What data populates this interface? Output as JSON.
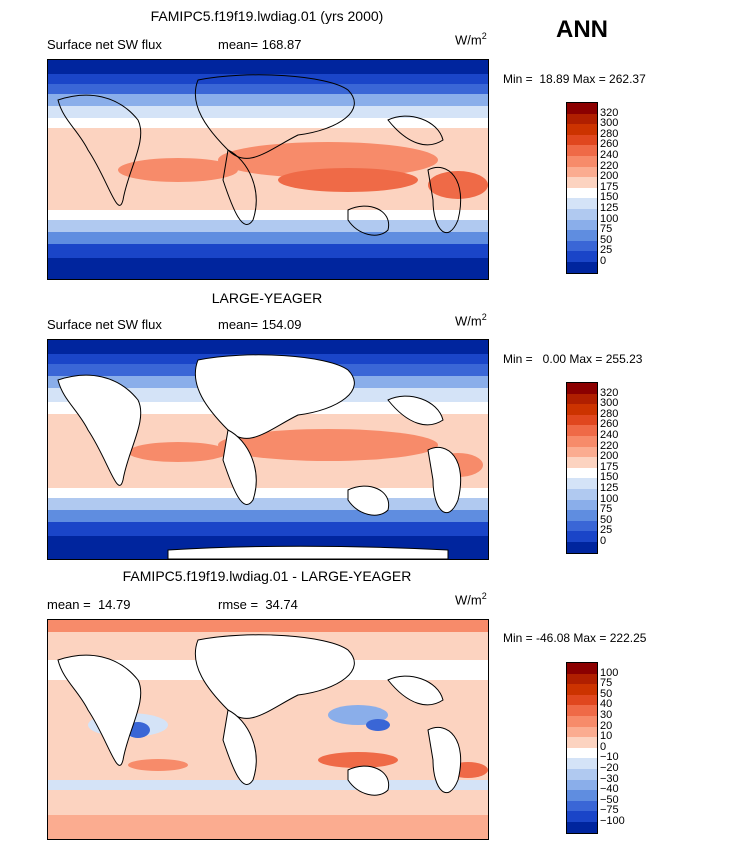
{
  "season": "ANN",
  "units": "W/m",
  "units_sup": "2",
  "panels": [
    {
      "title": "FAMIPC5.f19f19.lwdiag.01 (yrs 2000)",
      "left_label": "Surface net SW flux",
      "right_label": "mean= 168.87",
      "minmax": "Min =  18.89 Max = 262.37",
      "colorbar_labels": [
        "320",
        "300",
        "280",
        "260",
        "240",
        "220",
        "200",
        "175",
        "150",
        "125",
        "100",
        "75",
        "50",
        "25",
        "0"
      ],
      "land_masked": false
    },
    {
      "title": "LARGE-YEAGER",
      "left_label": "Surface net SW flux",
      "right_label": "mean= 154.09",
      "minmax": "Min =   0.00 Max = 255.23",
      "colorbar_labels": [
        "320",
        "300",
        "280",
        "260",
        "240",
        "220",
        "200",
        "175",
        "150",
        "125",
        "100",
        "75",
        "50",
        "25",
        "0"
      ],
      "land_masked": true
    },
    {
      "title": "FAMIPC5.f19f19.lwdiag.01 - LARGE-YEAGER",
      "left_label": "mean =  14.79",
      "right_label": "rmse =  34.74",
      "minmax": "Min = -46.08 Max = 222.25",
      "colorbar_labels": [
        "100",
        "75",
        "50",
        "40",
        "30",
        "20",
        "10",
        "0",
        "−10",
        "−20",
        "−30",
        "−40",
        "−50",
        "−75",
        "−100"
      ],
      "land_masked": true
    }
  ],
  "colors": {
    "colorbar": [
      "#8b0000",
      "#b01f00",
      "#cc3300",
      "#e0471f",
      "#ef6a47",
      "#f78b6a",
      "#fbac90",
      "#fcd3c0",
      "#ffffff",
      "#d4e3f7",
      "#b0c9f0",
      "#8aaeea",
      "#5f8de0",
      "#3a66d6",
      "#1a45c8",
      "#00259e"
    ]
  }
}
